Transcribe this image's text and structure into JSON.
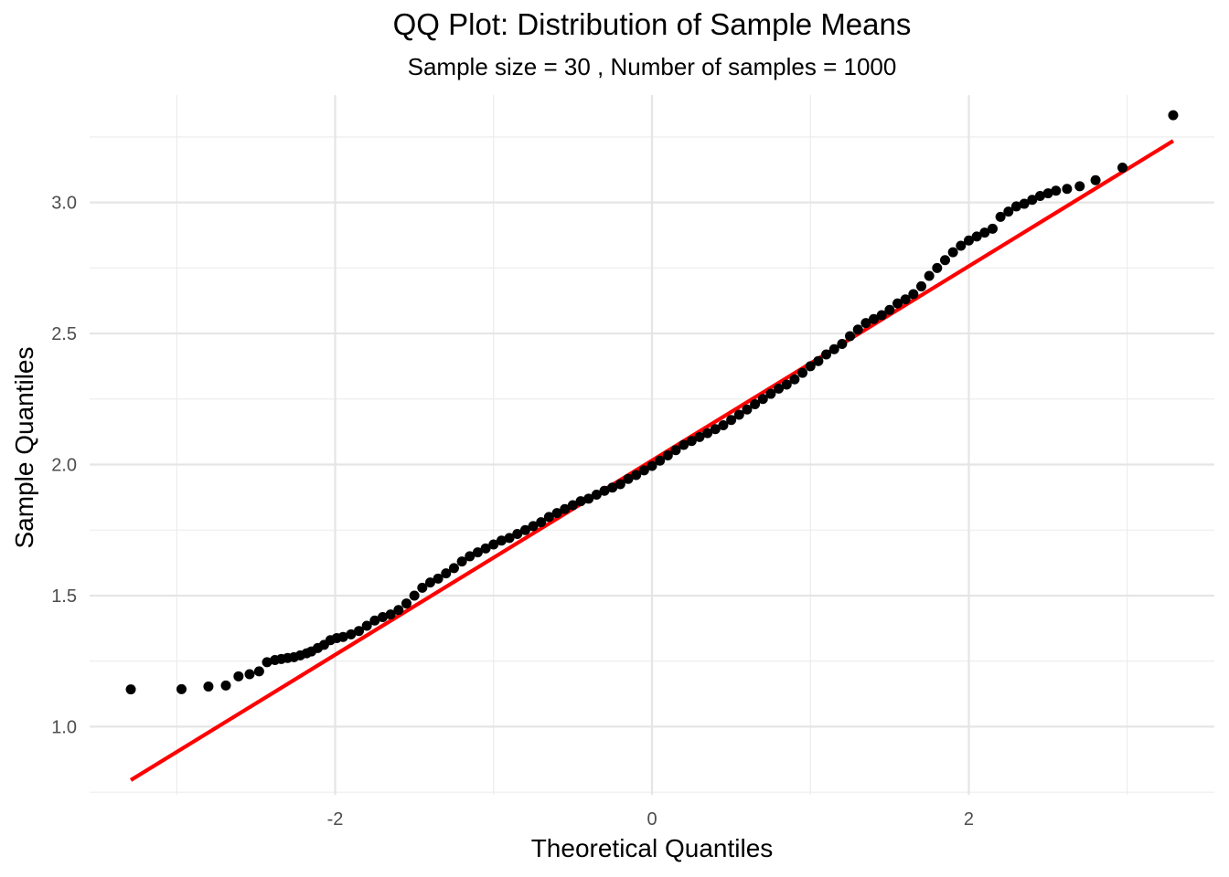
{
  "chart_data": {
    "type": "scatter",
    "title": "QQ Plot: Distribution of Sample Means",
    "subtitle": "Sample size = 30 , Number of samples = 1000",
    "xlabel": "Theoretical Quantiles",
    "ylabel": "Sample Quantiles",
    "xlim": [
      -3.55,
      3.55
    ],
    "ylim": [
      0.74,
      3.41
    ],
    "x_ticks": [
      -2,
      0,
      2
    ],
    "x_tick_labels": [
      "-2",
      "0",
      "2"
    ],
    "y_ticks": [
      1.0,
      1.5,
      2.0,
      2.5,
      3.0
    ],
    "y_tick_labels": [
      "1.0",
      "1.5",
      "2.0",
      "2.5",
      "3.0"
    ],
    "grid": true,
    "background": "#ffffff",
    "point_color": "#000000",
    "line_color": "#ff0000",
    "reference_line": {
      "x": [
        -3.29,
        3.29
      ],
      "y": [
        0.796,
        3.235
      ]
    },
    "series": [
      {
        "values": [
          [
            -3.29,
            1.142
          ],
          [
            -2.97,
            1.143
          ],
          [
            -2.8,
            1.153
          ],
          [
            -2.69,
            1.157
          ],
          [
            -2.61,
            1.192
          ],
          [
            -2.54,
            1.2
          ],
          [
            -2.48,
            1.211
          ],
          [
            -2.43,
            1.246
          ],
          [
            -2.38,
            1.254
          ],
          [
            -2.34,
            1.258
          ],
          [
            -2.3,
            1.262
          ],
          [
            -2.26,
            1.265
          ],
          [
            -2.22,
            1.272
          ],
          [
            -2.18,
            1.28
          ],
          [
            -2.15,
            1.287
          ],
          [
            -2.11,
            1.3
          ],
          [
            -2.07,
            1.312
          ],
          [
            -2.03,
            1.33
          ],
          [
            -1.99,
            1.338
          ],
          [
            -1.95,
            1.342
          ],
          [
            -1.9,
            1.352
          ],
          [
            -1.85,
            1.365
          ],
          [
            -1.8,
            1.385
          ],
          [
            -1.75,
            1.405
          ],
          [
            -1.7,
            1.418
          ],
          [
            -1.65,
            1.428
          ],
          [
            -1.6,
            1.445
          ],
          [
            -1.55,
            1.47
          ],
          [
            -1.5,
            1.5
          ],
          [
            -1.45,
            1.53
          ],
          [
            -1.4,
            1.55
          ],
          [
            -1.35,
            1.565
          ],
          [
            -1.3,
            1.585
          ],
          [
            -1.25,
            1.605
          ],
          [
            -1.2,
            1.63
          ],
          [
            -1.15,
            1.65
          ],
          [
            -1.1,
            1.665
          ],
          [
            -1.05,
            1.68
          ],
          [
            -1.0,
            1.695
          ],
          [
            -0.95,
            1.71
          ],
          [
            -0.9,
            1.72
          ],
          [
            -0.85,
            1.735
          ],
          [
            -0.8,
            1.75
          ],
          [
            -0.75,
            1.765
          ],
          [
            -0.7,
            1.78
          ],
          [
            -0.65,
            1.8
          ],
          [
            -0.6,
            1.815
          ],
          [
            -0.55,
            1.83
          ],
          [
            -0.5,
            1.845
          ],
          [
            -0.45,
            1.86
          ],
          [
            -0.4,
            1.87
          ],
          [
            -0.35,
            1.885
          ],
          [
            -0.3,
            1.9
          ],
          [
            -0.25,
            1.912
          ],
          [
            -0.2,
            1.925
          ],
          [
            -0.15,
            1.945
          ],
          [
            -0.1,
            1.96
          ],
          [
            -0.05,
            1.978
          ],
          [
            0.0,
            1.995
          ],
          [
            0.05,
            2.015
          ],
          [
            0.1,
            2.035
          ],
          [
            0.15,
            2.055
          ],
          [
            0.2,
            2.075
          ],
          [
            0.25,
            2.09
          ],
          [
            0.3,
            2.105
          ],
          [
            0.35,
            2.12
          ],
          [
            0.4,
            2.135
          ],
          [
            0.45,
            2.15
          ],
          [
            0.5,
            2.17
          ],
          [
            0.55,
            2.19
          ],
          [
            0.6,
            2.21
          ],
          [
            0.65,
            2.23
          ],
          [
            0.7,
            2.25
          ],
          [
            0.75,
            2.27
          ],
          [
            0.8,
            2.29
          ],
          [
            0.85,
            2.305
          ],
          [
            0.9,
            2.325
          ],
          [
            0.95,
            2.35
          ],
          [
            1.0,
            2.375
          ],
          [
            1.05,
            2.395
          ],
          [
            1.1,
            2.42
          ],
          [
            1.15,
            2.44
          ],
          [
            1.2,
            2.46
          ],
          [
            1.25,
            2.49
          ],
          [
            1.3,
            2.515
          ],
          [
            1.35,
            2.54
          ],
          [
            1.4,
            2.555
          ],
          [
            1.45,
            2.57
          ],
          [
            1.5,
            2.59
          ],
          [
            1.55,
            2.615
          ],
          [
            1.6,
            2.63
          ],
          [
            1.65,
            2.65
          ],
          [
            1.7,
            2.68
          ],
          [
            1.75,
            2.72
          ],
          [
            1.8,
            2.75
          ],
          [
            1.85,
            2.78
          ],
          [
            1.9,
            2.81
          ],
          [
            1.95,
            2.835
          ],
          [
            2.0,
            2.855
          ],
          [
            2.05,
            2.87
          ],
          [
            2.1,
            2.885
          ],
          [
            2.15,
            2.9
          ],
          [
            2.2,
            2.945
          ],
          [
            2.25,
            2.965
          ],
          [
            2.3,
            2.985
          ],
          [
            2.35,
            2.995
          ],
          [
            2.4,
            3.01
          ],
          [
            2.45,
            3.025
          ],
          [
            2.5,
            3.035
          ],
          [
            2.55,
            3.045
          ],
          [
            2.62,
            3.052
          ],
          [
            2.7,
            3.062
          ],
          [
            2.8,
            3.085
          ],
          [
            2.97,
            3.133
          ],
          [
            3.29,
            3.333
          ]
        ]
      }
    ]
  }
}
